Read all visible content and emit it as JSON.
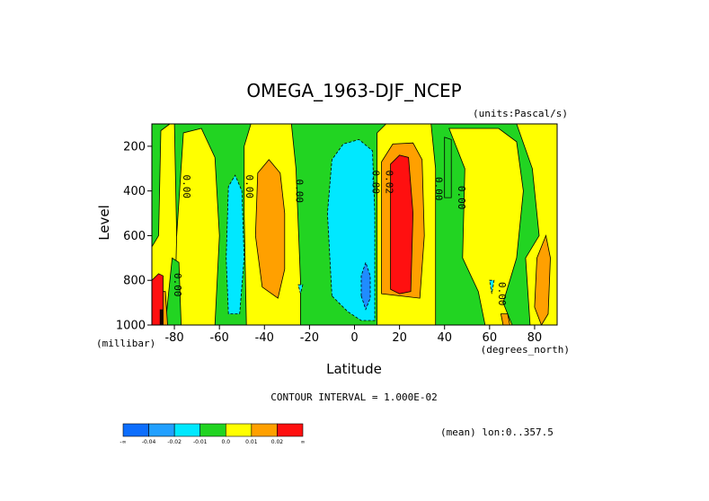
{
  "chart_data": {
    "type": "heatmap",
    "title": "OMEGA_1963-DJF_NCEP",
    "units": "(units:Pascal/s)",
    "xlabel": "Latitude",
    "ylabel": "Level",
    "x_unit": "(degrees_north)",
    "y_unit": "(millibar)",
    "xlim": [
      -90,
      90
    ],
    "ylim": [
      1000,
      100
    ],
    "x_ticks": [
      -80,
      -60,
      -40,
      -20,
      0,
      20,
      40,
      60,
      80
    ],
    "y_ticks": [
      200,
      400,
      600,
      800,
      1000
    ],
    "contour_interval_text": "CONTOUR INTERVAL = 1.000E-02",
    "mean_text": "(mean) lon:0..357.5",
    "contour_labels": [
      "0.00",
      "0.00",
      "0.00",
      "0.00",
      "0.02",
      "0.00",
      "0.00",
      "0.00",
      "0.00"
    ],
    "colorbar": {
      "colors": [
        "#0d6efd",
        "#22a0ff",
        "#00e8ff",
        "#22d422",
        "#ffff00",
        "#ffa000",
        "#ff1010"
      ],
      "labels": [
        "-∞",
        "-0.04",
        "-0.02",
        "-0.01",
        "0.0",
        "0.01",
        "0.02",
        "∞"
      ]
    },
    "colors": {
      "strong_neg": "#1f8cff",
      "neg": "#00e8ff",
      "weak_neg": "#22d422",
      "pos": "#ffff00",
      "mid_pos": "#ffa000",
      "strong_pos": "#ff1010",
      "extreme": "#1a0000"
    }
  }
}
